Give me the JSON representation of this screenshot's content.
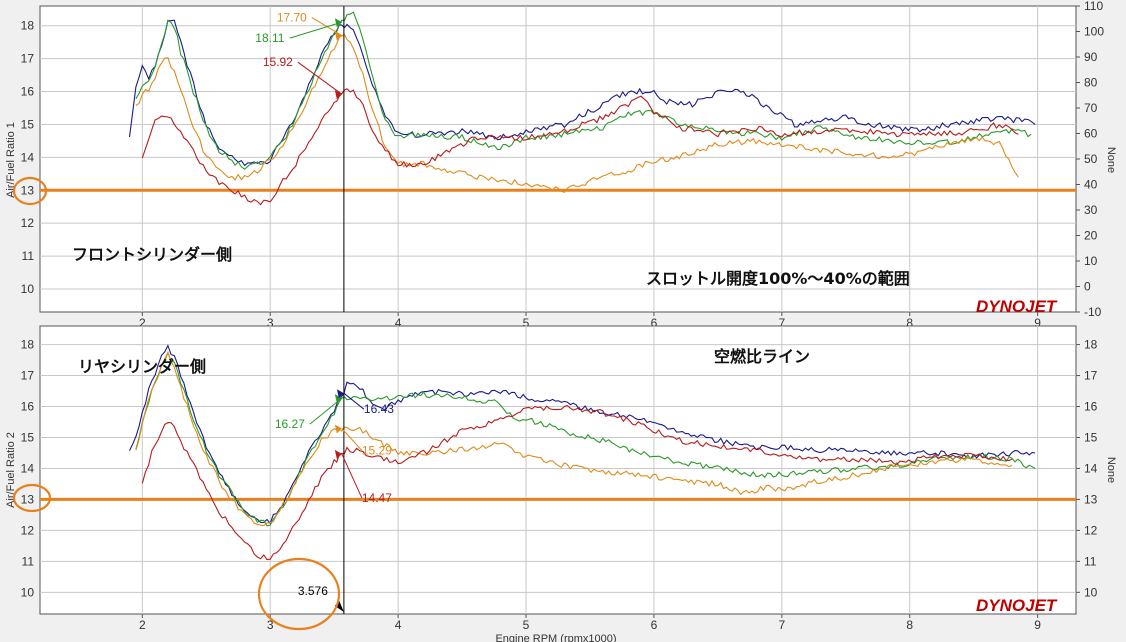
{
  "chart_data": [
    {
      "type": "line",
      "ylabel": "Air/Fuel Ratio 1",
      "y2label": "None",
      "xlim": [
        1.2,
        9.3
      ],
      "ylim": [
        9.3,
        18.6
      ],
      "y2lim": [
        -10,
        110
      ],
      "xticks": [
        2,
        3,
        4,
        5,
        6,
        7,
        8,
        9
      ],
      "yticks": [
        10,
        11,
        12,
        13,
        14,
        15,
        16,
        17,
        18
      ],
      "y2ticks": [
        -10,
        0,
        10,
        20,
        30,
        40,
        50,
        60,
        70,
        80,
        90,
        100,
        110
      ],
      "grid": true,
      "series": [
        {
          "color": "#1a1a8c",
          "x": [
            1.9,
            1.95,
            2.0,
            2.05,
            2.1,
            2.15,
            2.2,
            2.25,
            2.3,
            2.4,
            2.5,
            2.6,
            2.7,
            2.8,
            2.9,
            3.0,
            3.1,
            3.2,
            3.3,
            3.4,
            3.5,
            3.56,
            3.6,
            3.65,
            3.7,
            3.8,
            3.9,
            4.0,
            4.2,
            4.5,
            4.8,
            5.0,
            5.3,
            5.6,
            5.8,
            6.0,
            6.1,
            6.3,
            6.5,
            6.7,
            6.9,
            7.1,
            7.3,
            7.5,
            7.7,
            7.9,
            8.1,
            8.3,
            8.5,
            8.7,
            8.9,
            8.98
          ],
          "y": [
            14.6,
            16.2,
            16.7,
            16.4,
            16.8,
            17.4,
            18.2,
            18.2,
            17.5,
            16.2,
            15.0,
            14.3,
            14.0,
            13.8,
            13.8,
            13.9,
            14.6,
            15.3,
            16.2,
            17.1,
            17.8,
            18.05,
            18.0,
            17.8,
            17.4,
            16.2,
            15.2,
            14.7,
            14.7,
            14.8,
            14.6,
            14.8,
            15.0,
            15.6,
            16.0,
            16.0,
            15.7,
            15.6,
            16.0,
            16.0,
            15.5,
            15.0,
            15.1,
            15.2,
            15.0,
            14.9,
            14.8,
            15.0,
            15.1,
            15.2,
            15.1,
            15.0
          ]
        },
        {
          "color": "#2a9a2a",
          "x": [
            1.95,
            2.0,
            2.05,
            2.1,
            2.15,
            2.2,
            2.25,
            2.3,
            2.4,
            2.5,
            2.6,
            2.7,
            2.8,
            2.9,
            3.0,
            3.1,
            3.2,
            3.3,
            3.4,
            3.5,
            3.56,
            3.6,
            3.65,
            3.7,
            3.8,
            3.9,
            4.0,
            4.2,
            4.5,
            4.8,
            5.0,
            5.3,
            5.6,
            5.8,
            6.0,
            6.2,
            6.5,
            6.8,
            7.0,
            7.3,
            7.6,
            7.9,
            8.2,
            8.5,
            8.8,
            8.95
          ],
          "y": [
            15.8,
            16.2,
            16.3,
            16.8,
            17.5,
            18.1,
            18.0,
            17.2,
            16.0,
            14.9,
            14.2,
            13.9,
            13.7,
            13.8,
            14.0,
            14.5,
            15.2,
            16.1,
            17.0,
            17.7,
            18.11,
            18.3,
            18.4,
            17.9,
            16.5,
            15.1,
            14.6,
            14.7,
            14.6,
            14.3,
            14.6,
            14.7,
            14.9,
            15.3,
            15.4,
            15.0,
            14.8,
            14.7,
            14.6,
            14.9,
            14.6,
            14.5,
            14.4,
            14.6,
            14.8,
            14.7
          ]
        },
        {
          "color": "#e08b1a",
          "x": [
            1.95,
            2.0,
            2.05,
            2.1,
            2.15,
            2.2,
            2.25,
            2.3,
            2.4,
            2.5,
            2.6,
            2.7,
            2.8,
            2.9,
            3.0,
            3.1,
            3.2,
            3.3,
            3.4,
            3.5,
            3.56,
            3.6,
            3.65,
            3.7,
            3.8,
            3.9,
            4.0,
            4.2,
            4.5,
            4.8,
            5.0,
            5.3,
            5.6,
            5.8,
            6.0,
            6.2,
            6.5,
            6.8,
            7.0,
            7.3,
            7.6,
            7.9,
            8.2,
            8.5,
            8.7,
            8.85
          ],
          "y": [
            15.5,
            15.9,
            16.1,
            16.4,
            16.9,
            17.0,
            16.6,
            16.0,
            14.9,
            14.0,
            13.6,
            13.4,
            13.4,
            13.6,
            13.9,
            14.4,
            15.0,
            15.8,
            16.6,
            17.3,
            17.7,
            17.6,
            17.3,
            16.8,
            15.5,
            14.3,
            13.8,
            13.8,
            13.5,
            13.3,
            13.2,
            13.0,
            13.4,
            13.6,
            13.9,
            14.0,
            14.4,
            14.5,
            14.4,
            14.2,
            14.1,
            14.0,
            14.3,
            14.6,
            14.4,
            13.4
          ]
        },
        {
          "color": "#b81c1c",
          "x": [
            2.0,
            2.05,
            2.1,
            2.15,
            2.2,
            2.25,
            2.3,
            2.4,
            2.5,
            2.6,
            2.7,
            2.8,
            2.9,
            3.0,
            3.1,
            3.2,
            3.3,
            3.4,
            3.5,
            3.56,
            3.6,
            3.65,
            3.7,
            3.8,
            3.9,
            4.0,
            4.2,
            4.4,
            4.6,
            4.8,
            5.0,
            5.3,
            5.6,
            5.8,
            5.9,
            6.0,
            6.2,
            6.5,
            6.8,
            7.0,
            7.3,
            7.6,
            7.9,
            8.2,
            8.5,
            8.7,
            8.85
          ],
          "y": [
            13.9,
            14.6,
            15.1,
            15.3,
            15.3,
            15.0,
            14.8,
            14.2,
            13.6,
            13.2,
            13.0,
            12.8,
            12.6,
            12.7,
            13.3,
            13.8,
            14.5,
            15.1,
            15.6,
            15.92,
            16.0,
            16.0,
            15.8,
            14.8,
            14.2,
            13.8,
            13.8,
            14.2,
            14.6,
            14.6,
            14.6,
            14.8,
            15.2,
            15.6,
            15.8,
            15.4,
            14.9,
            14.7,
            14.9,
            14.7,
            14.8,
            14.8,
            14.7,
            14.7,
            14.8,
            15.0,
            14.7
          ]
        }
      ],
      "cursor_x": 3.576,
      "markers": [
        {
          "label": "17.70",
          "x": 3.56,
          "y": 17.7,
          "color": "#e08b1a"
        },
        {
          "label": "15.92",
          "x": 3.56,
          "y": 15.92,
          "color": "#b81c1c"
        },
        {
          "label": "18.11",
          "x": 3.56,
          "y": 18.11,
          "color": "#2a9a2a"
        }
      ]
    },
    {
      "type": "line",
      "ylabel": "Air/Fuel Ratio 2",
      "y2label": "None",
      "xlim": [
        1.2,
        9.3
      ],
      "ylim": [
        9.3,
        18.6
      ],
      "xticks": [
        2,
        3,
        4,
        5,
        6,
        7,
        8,
        9
      ],
      "yticks": [
        10,
        11,
        12,
        13,
        14,
        15,
        16,
        17,
        18
      ],
      "y2ticks": [
        10,
        11,
        12,
        13,
        14,
        15,
        16,
        17,
        18
      ],
      "xlabel": "Engine RPM (rpmx1000)",
      "grid": true,
      "series": [
        {
          "color": "#1a1a8c",
          "x": [
            1.9,
            1.95,
            2.0,
            2.05,
            2.1,
            2.15,
            2.2,
            2.25,
            2.3,
            2.4,
            2.5,
            2.6,
            2.7,
            2.8,
            2.9,
            3.0,
            3.1,
            3.2,
            3.3,
            3.4,
            3.5,
            3.576,
            3.6,
            3.65,
            3.7,
            3.8,
            3.9,
            4.0,
            4.2,
            4.5,
            4.8,
            5.0,
            5.3,
            5.6,
            5.9,
            6.2,
            6.5,
            6.8,
            7.0,
            7.3,
            7.6,
            7.9,
            8.2,
            8.5,
            8.8,
            8.98
          ],
          "y": [
            14.5,
            15.0,
            15.8,
            16.5,
            17.1,
            17.6,
            17.9,
            17.6,
            17.0,
            15.8,
            14.7,
            13.9,
            13.2,
            12.6,
            12.3,
            12.3,
            12.9,
            13.7,
            14.5,
            15.2,
            15.9,
            16.43,
            16.7,
            16.8,
            16.6,
            16.1,
            15.9,
            16.2,
            16.5,
            16.4,
            16.5,
            16.3,
            16.1,
            15.8,
            15.6,
            15.2,
            14.9,
            14.7,
            14.7,
            14.6,
            14.6,
            14.5,
            14.5,
            14.4,
            14.5,
            14.5
          ]
        },
        {
          "color": "#2a9a2a",
          "x": [
            1.95,
            2.0,
            2.05,
            2.1,
            2.15,
            2.2,
            2.25,
            2.3,
            2.4,
            2.5,
            2.6,
            2.7,
            2.8,
            2.9,
            3.0,
            3.1,
            3.2,
            3.3,
            3.4,
            3.5,
            3.56,
            3.6,
            3.7,
            3.8,
            4.0,
            4.2,
            4.5,
            4.8,
            4.9,
            5.0,
            5.3,
            5.6,
            5.9,
            6.2,
            6.5,
            6.8,
            7.0,
            7.3,
            7.6,
            7.9,
            8.2,
            8.5,
            8.8,
            8.98
          ],
          "y": [
            14.6,
            15.5,
            16.2,
            16.8,
            17.3,
            17.7,
            17.4,
            16.8,
            15.6,
            14.6,
            13.8,
            13.2,
            12.6,
            12.3,
            12.2,
            12.8,
            13.6,
            14.4,
            15.1,
            15.8,
            16.27,
            16.3,
            16.3,
            16.2,
            16.3,
            16.4,
            16.3,
            16.1,
            15.6,
            15.6,
            15.2,
            14.9,
            14.5,
            14.2,
            14.0,
            13.8,
            13.8,
            13.9,
            14.0,
            14.1,
            14.3,
            14.4,
            14.3,
            14.0
          ]
        },
        {
          "color": "#e08b1a",
          "x": [
            1.95,
            2.0,
            2.05,
            2.1,
            2.15,
            2.2,
            2.25,
            2.3,
            2.4,
            2.5,
            2.6,
            2.7,
            2.8,
            2.9,
            3.0,
            3.1,
            3.2,
            3.3,
            3.4,
            3.5,
            3.56,
            3.6,
            3.7,
            3.8,
            4.0,
            4.2,
            4.5,
            4.8,
            5.0,
            5.3,
            5.6,
            5.9,
            6.2,
            6.5,
            6.7,
            6.9,
            7.0,
            7.3,
            7.6,
            7.9,
            8.2,
            8.5,
            8.8
          ],
          "y": [
            14.5,
            15.5,
            16.2,
            16.8,
            17.3,
            17.7,
            17.3,
            16.6,
            15.4,
            14.4,
            13.6,
            13.0,
            12.5,
            12.2,
            12.2,
            12.8,
            13.5,
            14.3,
            14.9,
            15.2,
            15.29,
            15.3,
            15.3,
            15.0,
            14.5,
            14.5,
            14.6,
            14.8,
            14.4,
            14.1,
            13.9,
            13.8,
            13.6,
            13.5,
            13.2,
            13.4,
            13.3,
            13.6,
            13.8,
            14.1,
            14.2,
            14.3,
            14.1
          ]
        },
        {
          "color": "#b81c1c",
          "x": [
            2.0,
            2.05,
            2.1,
            2.15,
            2.2,
            2.25,
            2.3,
            2.4,
            2.5,
            2.6,
            2.7,
            2.8,
            2.9,
            3.0,
            3.1,
            3.2,
            3.3,
            3.4,
            3.5,
            3.56,
            3.6,
            3.7,
            3.8,
            4.0,
            4.2,
            4.5,
            4.8,
            5.0,
            5.3,
            5.6,
            5.9,
            6.2,
            6.5,
            6.8,
            7.0,
            7.3,
            7.6,
            7.9,
            8.2,
            8.5,
            8.8
          ],
          "y": [
            13.5,
            14.2,
            14.8,
            15.2,
            15.5,
            15.3,
            14.9,
            14.1,
            13.3,
            12.6,
            12.1,
            11.6,
            11.2,
            11.1,
            11.5,
            12.2,
            13.0,
            13.7,
            14.2,
            14.47,
            14.6,
            14.6,
            14.4,
            14.2,
            14.5,
            15.2,
            15.6,
            15.9,
            16.0,
            15.8,
            15.4,
            14.9,
            14.7,
            14.6,
            14.4,
            14.3,
            14.3,
            14.2,
            14.4,
            14.4,
            14.3
          ]
        }
      ],
      "cursor_x": 3.576,
      "markers": [
        {
          "label": "16.27",
          "x": 3.56,
          "y": 16.27,
          "color": "#2a9a2a"
        },
        {
          "label": "16.43",
          "x": 3.576,
          "y": 16.43,
          "color": "#1a1a8c"
        },
        {
          "label": "15.29",
          "x": 3.56,
          "y": 15.29,
          "color": "#e08b1a"
        },
        {
          "label": "14.47",
          "x": 3.56,
          "y": 14.47,
          "color": "#b81c1c"
        }
      ],
      "cursor_label": "3.576"
    }
  ],
  "annotations": {
    "front_cylinder": "フロントシリンダー側",
    "throttle_range": "スロットル開度100%～40%の範囲",
    "rear_cylinder": "リヤシリンダー側",
    "afr_line": "空燃比ライン"
  },
  "reference_line": {
    "value": 13,
    "color": "#e8801e"
  },
  "logo": {
    "text": "DYNOJET"
  }
}
